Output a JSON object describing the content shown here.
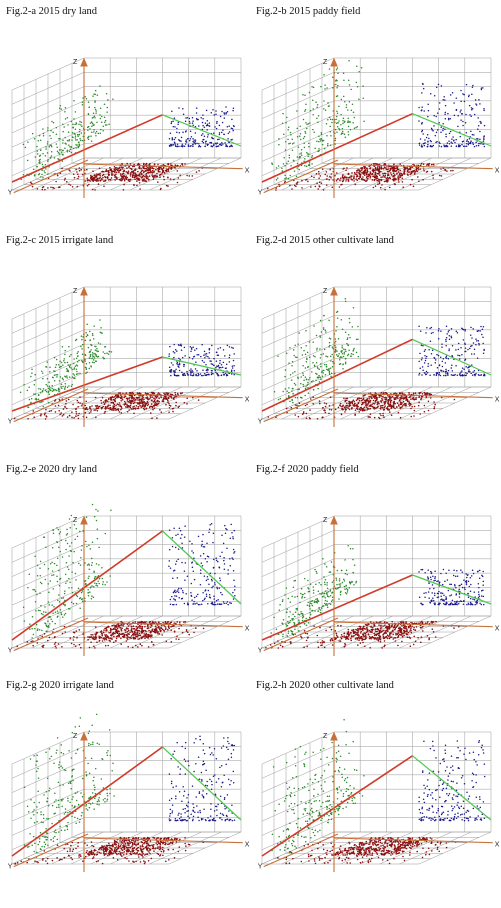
{
  "axis_labels": {
    "x": "X",
    "y": "Y",
    "z": "Z"
  },
  "colors": {
    "grid": "#9a9a9a",
    "axis": "#c7703a",
    "green_points": "#2a8a2a",
    "blue_points": "#1a1a8c",
    "red_points": "#8b1010",
    "fit_line_red": "#d23a2a",
    "fit_line_green": "#4fc84f"
  },
  "panels": [
    {
      "caption": "Fig.2-a 2015 dry land"
    },
    {
      "caption": "Fig.2-b 2015 paddy field"
    },
    {
      "caption": "Fig.2-c 2015 irrigate land"
    },
    {
      "caption": "Fig.2-d 2015 other cultivate land"
    },
    {
      "caption": "Fig.2-e 2020 dry land"
    },
    {
      "caption": "Fig.2-f 2020 paddy field"
    },
    {
      "caption": "Fig.2-g 2020 irrigate land"
    },
    {
      "caption": "Fig.2-h 2020 other cultivate land"
    }
  ],
  "chart_data": [
    {
      "type": "scatter",
      "title": "Fig.2-a 2015 dry land",
      "projections": [
        "XY (red)",
        "YZ (green)",
        "XZ (blue)"
      ],
      "grid": true,
      "line_red_slope": 0.32,
      "green_spread": 0.45
    },
    {
      "type": "scatter",
      "title": "Fig.2-b 2015 paddy field",
      "projections": [
        "XY (red)",
        "YZ (green)",
        "XZ (blue)"
      ],
      "grid": true,
      "line_red_slope": 0.33,
      "green_spread": 0.7
    },
    {
      "type": "scatter",
      "title": "Fig.2-c 2015 irrigate land",
      "projections": [
        "XY (red)",
        "YZ (green)",
        "XZ (blue)"
      ],
      "grid": true,
      "line_red_slope": 0.2,
      "green_spread": 0.35
    },
    {
      "type": "scatter",
      "title": "Fig.2-d 2015 other cultivate land",
      "projections": [
        "XY (red)",
        "YZ (green)",
        "XZ (blue)"
      ],
      "grid": true,
      "line_red_slope": 0.36,
      "green_spread": 0.55
    },
    {
      "type": "scatter",
      "title": "Fig.2-e 2020 dry land",
      "projections": [
        "XY (red)",
        "YZ (green)",
        "XZ (blue)"
      ],
      "grid": true,
      "line_red_slope": 0.7,
      "green_spread": 0.9
    },
    {
      "type": "scatter",
      "title": "Fig.2-f 2020 paddy field",
      "projections": [
        "XY (red)",
        "YZ (green)",
        "XZ (blue)"
      ],
      "grid": true,
      "line_red_slope": 0.3,
      "green_spread": 0.4
    },
    {
      "type": "scatter",
      "title": "Fig.2-g 2020 irrigate land",
      "projections": [
        "XY (red)",
        "YZ (green)",
        "XZ (blue)"
      ],
      "grid": true,
      "line_red_slope": 0.7,
      "green_spread": 0.95
    },
    {
      "type": "scatter",
      "title": "Fig.2-h 2020 other cultivate land",
      "projections": [
        "XY (red)",
        "YZ (green)",
        "XZ (blue)"
      ],
      "grid": true,
      "line_red_slope": 0.62,
      "green_spread": 0.9
    }
  ]
}
